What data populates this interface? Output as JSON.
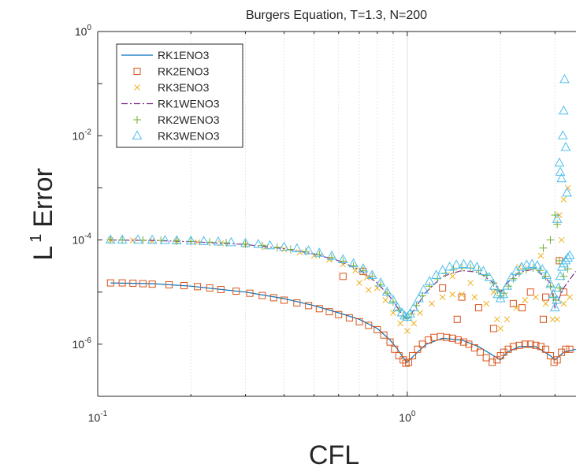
{
  "chart_data": {
    "type": "scatter",
    "title": "Burgers Equation, T=1.3, N=200",
    "xlabel": "CFL",
    "ylabel_main": "L",
    "ylabel_sup": "1",
    "ylabel_rest": "Error",
    "xscale": "log",
    "yscale": "log",
    "xlim": [
      0.1,
      3.5
    ],
    "ylim": [
      1e-07,
      1
    ],
    "grid": "vertical-minor",
    "legend_position": "top-left",
    "x_ticks": [
      {
        "base": "10",
        "exp": "-1",
        "value": 0.1
      },
      {
        "base": "10",
        "exp": "0",
        "value": 1
      }
    ],
    "y_ticks": [
      {
        "base": "10",
        "exp": "0",
        "value": 1
      },
      {
        "base": "10",
        "exp": "-2",
        "value": 0.01
      },
      {
        "base": "10",
        "exp": "-4",
        "value": 0.0001
      },
      {
        "base": "10",
        "exp": "-6",
        "value": 1e-06
      }
    ],
    "series": [
      {
        "name": "RK1ENO3",
        "marker": "line",
        "color": "#0072BD",
        "x": [
          0.11,
          0.15,
          0.2,
          0.3,
          0.4,
          0.5,
          0.6,
          0.7,
          0.8,
          0.88,
          0.93,
          0.97,
          1.0,
          1.05,
          1.15,
          1.3,
          1.5,
          1.7,
          1.9,
          2.0,
          2.1,
          2.3,
          2.6,
          2.9,
          3.0,
          3.2,
          3.5
        ],
        "y": [
          1.5e-05,
          1.45e-05,
          1.3e-05,
          1e-05,
          7.5e-06,
          5.5e-06,
          4e-06,
          3e-06,
          2e-06,
          1.2e-06,
          8e-07,
          5.5e-07,
          4.5e-07,
          6e-07,
          1e-06,
          1.3e-06,
          1.2e-06,
          9e-07,
          6e-07,
          5e-07,
          7e-07,
          9e-07,
          9e-07,
          6e-07,
          5e-07,
          7e-07,
          8e-07
        ]
      },
      {
        "name": "RK2ENO3",
        "marker": "square",
        "color": "#D95319",
        "x": [
          0.11,
          0.12,
          0.13,
          0.14,
          0.15,
          0.17,
          0.19,
          0.21,
          0.23,
          0.25,
          0.28,
          0.31,
          0.34,
          0.37,
          0.4,
          0.44,
          0.48,
          0.52,
          0.56,
          0.6,
          0.65,
          0.7,
          0.75,
          0.8,
          0.84,
          0.88,
          0.91,
          0.94,
          0.97,
          0.99,
          1.01,
          1.04,
          1.08,
          1.12,
          1.17,
          1.22,
          1.28,
          1.34,
          1.4,
          1.46,
          1.52,
          1.58,
          1.65,
          1.72,
          1.8,
          1.88,
          1.95,
          2.0,
          2.05,
          2.12,
          2.2,
          2.3,
          2.4,
          2.5,
          2.6,
          2.7,
          2.8,
          2.9,
          2.98,
          3.05,
          3.15,
          3.25,
          3.35,
          0.62,
          0.72,
          1.3,
          1.5,
          1.7,
          2.2,
          2.5,
          2.8,
          3.1,
          1.45,
          1.9,
          2.35,
          2.75,
          3.2
        ],
        "y": [
          1.5e-05,
          1.5e-05,
          1.48e-05,
          1.45e-05,
          1.42e-05,
          1.38e-05,
          1.33e-05,
          1.27e-05,
          1.2e-05,
          1.12e-05,
          1.04e-05,
          9.5e-06,
          8.6e-06,
          7.8e-06,
          7e-06,
          6.2e-06,
          5.5e-06,
          4.8e-06,
          4.2e-06,
          3.7e-06,
          3.2e-06,
          2.7e-06,
          2.3e-06,
          1.9e-06,
          1.5e-06,
          1.1e-06,
          8e-07,
          6e-07,
          5e-07,
          4.3e-07,
          4.5e-07,
          6e-07,
          8e-07,
          1e-06,
          1.2e-06,
          1.35e-06,
          1.4e-06,
          1.35e-06,
          1.3e-06,
          1.2e-06,
          1.1e-06,
          1e-06,
          8.5e-07,
          7e-07,
          5.5e-07,
          4.5e-07,
          5e-07,
          6e-07,
          7e-07,
          8e-07,
          9e-07,
          9.5e-07,
          1e-06,
          1e-06,
          9.5e-07,
          9e-07,
          8e-07,
          6e-07,
          4.5e-07,
          5e-07,
          7e-07,
          8e-07,
          8e-07,
          2e-05,
          2.5e-05,
          1.2e-05,
          8e-06,
          5e-06,
          6e-06,
          1e-05,
          8e-06,
          4e-05,
          3e-06,
          2e-06,
          5e-06,
          3e-06,
          1e-05
        ]
      },
      {
        "name": "RK3ENO3",
        "marker": "x",
        "color": "#EDB120",
        "x": [
          0.11,
          0.13,
          0.15,
          0.18,
          0.21,
          0.25,
          0.3,
          0.35,
          0.4,
          0.45,
          0.5,
          0.56,
          0.62,
          0.68,
          0.74,
          0.8,
          0.85,
          0.9,
          0.95,
          1.0,
          1.05,
          1.1,
          1.2,
          1.3,
          1.4,
          1.5,
          1.65,
          1.8,
          1.95,
          2.0,
          2.1,
          2.25,
          2.4,
          2.6,
          2.8,
          2.95,
          3.05,
          3.2,
          3.35,
          0.7,
          0.75,
          1.4,
          1.6,
          1.9,
          2.3,
          2.7,
          3.1,
          3.2,
          3.3,
          3.15
        ],
        "y": [
          0.0001,
          9.8e-05,
          9.6e-05,
          9.3e-05,
          9e-05,
          8.6e-05,
          8e-05,
          7.4e-05,
          6.6e-05,
          5.8e-05,
          5e-05,
          4.2e-05,
          3.4e-05,
          2.6e-05,
          1.9e-05,
          1.2e-05,
          7e-06,
          4e-06,
          2.5e-06,
          1.8e-06,
          2.5e-06,
          4e-06,
          6e-06,
          8e-06,
          9e-06,
          9e-06,
          8e-06,
          6e-06,
          3e-06,
          2e-06,
          3e-06,
          5e-06,
          7e-06,
          8e-06,
          6e-06,
          3e-06,
          3e-06,
          6e-06,
          8e-06,
          1.5e-05,
          1.1e-05,
          2e-05,
          1.5e-05,
          1e-05,
          3e-05,
          5e-05,
          0.0003,
          0.0006,
          0.001,
          0.0001
        ]
      },
      {
        "name": "RK1WENO3",
        "marker": "dashdot",
        "color": "#7E2F8E",
        "x": [
          0.11,
          0.15,
          0.2,
          0.3,
          0.4,
          0.5,
          0.6,
          0.7,
          0.8,
          0.88,
          0.93,
          0.97,
          1.0,
          1.05,
          1.15,
          1.3,
          1.5,
          1.7,
          1.9,
          2.0,
          2.1,
          2.3,
          2.6,
          2.9,
          3.0,
          3.2,
          3.5
        ],
        "y": [
          0.0001,
          9.8e-05,
          9.3e-05,
          8.2e-05,
          6.8e-05,
          5.4e-05,
          4e-05,
          2.7e-05,
          1.5e-05,
          8e-06,
          5e-06,
          3.5e-06,
          3e-06,
          4.5e-06,
          1e-05,
          2e-05,
          2.6e-05,
          2.4e-05,
          1.5e-05,
          1e-05,
          1.5e-05,
          2.4e-05,
          2.8e-05,
          1.5e-05,
          5e-06,
          1.2e-05,
          2.5e-05
        ]
      },
      {
        "name": "RK2WENO3",
        "marker": "plus",
        "color": "#77AC30",
        "x": [
          0.11,
          0.12,
          0.14,
          0.16,
          0.18,
          0.2,
          0.23,
          0.26,
          0.3,
          0.34,
          0.38,
          0.42,
          0.47,
          0.52,
          0.57,
          0.62,
          0.67,
          0.72,
          0.77,
          0.82,
          0.86,
          0.9,
          0.94,
          0.97,
          1.0,
          1.03,
          1.07,
          1.12,
          1.18,
          1.25,
          1.33,
          1.41,
          1.5,
          1.6,
          1.7,
          1.8,
          1.9,
          1.96,
          2.0,
          2.05,
          2.12,
          2.2,
          2.3,
          2.42,
          2.55,
          2.68,
          2.8,
          2.9,
          2.97,
          3.02,
          3.1,
          3.2,
          3.3,
          2.75,
          2.9,
          3.0,
          3.05,
          3.1
        ],
        "y": [
          0.000101,
          0.0001,
          9.9e-05,
          9.8e-05,
          9.6e-05,
          9.4e-05,
          9.1e-05,
          8.8e-05,
          8.3e-05,
          7.8e-05,
          7.2e-05,
          6.6e-05,
          6e-05,
          5.3e-05,
          4.6e-05,
          3.9e-05,
          3.2e-05,
          2.6e-05,
          2e-05,
          1.4e-05,
          9.5e-06,
          6.5e-06,
          4.5e-06,
          3.5e-06,
          3.2e-06,
          3.8e-06,
          5.5e-06,
          8.5e-06,
          1.3e-05,
          1.8e-05,
          2.3e-05,
          2.7e-05,
          2.9e-05,
          2.9e-05,
          2.6e-05,
          2.1e-05,
          1.5e-05,
          1.1e-05,
          8.5e-06,
          9.5e-06,
          1.3e-05,
          1.8e-05,
          2.3e-05,
          2.7e-05,
          2.9e-05,
          2.6e-05,
          2e-05,
          1.3e-05,
          8e-06,
          7e-06,
          1.2e-05,
          2e-05,
          2.8e-05,
          7e-05,
          0.0001,
          0.0003,
          0.0002,
          4e-05
        ]
      },
      {
        "name": "RK3WENO3",
        "marker": "triangle",
        "color": "#4DBEEE",
        "x": [
          0.11,
          0.12,
          0.135,
          0.15,
          0.165,
          0.18,
          0.2,
          0.22,
          0.245,
          0.27,
          0.3,
          0.33,
          0.36,
          0.4,
          0.44,
          0.48,
          0.52,
          0.57,
          0.62,
          0.67,
          0.72,
          0.77,
          0.82,
          0.86,
          0.9,
          0.93,
          0.96,
          0.98,
          1.0,
          1.02,
          1.05,
          1.09,
          1.13,
          1.18,
          1.24,
          1.3,
          1.37,
          1.44,
          1.52,
          1.6,
          1.68,
          1.76,
          1.84,
          1.91,
          1.96,
          2.0,
          2.04,
          2.1,
          2.17,
          2.25,
          2.34,
          2.43,
          2.53,
          2.63,
          2.73,
          2.82,
          2.9,
          2.96,
          3.0,
          3.04,
          3.08,
          3.12,
          3.16,
          3.2,
          3.25,
          3.3,
          3.35,
          3.05,
          3.1,
          3.12,
          3.15,
          3.18,
          3.2,
          3.22,
          3.25,
          3.28
        ],
        "y": [
          0.0001,
          0.0001,
          0.0001,
          9.9e-05,
          9.8e-05,
          9.7e-05,
          9.6e-05,
          9.4e-05,
          9.2e-05,
          8.9e-05,
          8.6e-05,
          8.2e-05,
          7.8e-05,
          7.3e-05,
          6.8e-05,
          6.2e-05,
          5.6e-05,
          4.9e-05,
          4.2e-05,
          3.5e-05,
          2.8e-05,
          2.1e-05,
          1.5e-05,
          1e-05,
          7e-06,
          5e-06,
          4e-06,
          3.5e-06,
          3.3e-06,
          3.8e-06,
          5e-06,
          7.5e-06,
          1.1e-05,
          1.6e-05,
          2.1e-05,
          2.6e-05,
          3e-05,
          3.3e-05,
          3.4e-05,
          3.3e-05,
          3e-05,
          2.5e-05,
          1.9e-05,
          1.3e-05,
          9e-06,
          7.5e-06,
          9e-06,
          1.3e-05,
          1.9e-05,
          2.5e-05,
          3e-05,
          3.3e-05,
          3.4e-05,
          3.2e-05,
          2.7e-05,
          2.1e-05,
          1.4e-05,
          9e-06,
          5e-06,
          7e-06,
          1.2e-05,
          2e-05,
          3e-05,
          3.5e-05,
          4e-05,
          4.5e-05,
          5e-05,
          0.00025,
          0.003,
          0.002,
          0.0015,
          0.01,
          0.03,
          0.12,
          0.006,
          0.0008
        ]
      }
    ]
  }
}
